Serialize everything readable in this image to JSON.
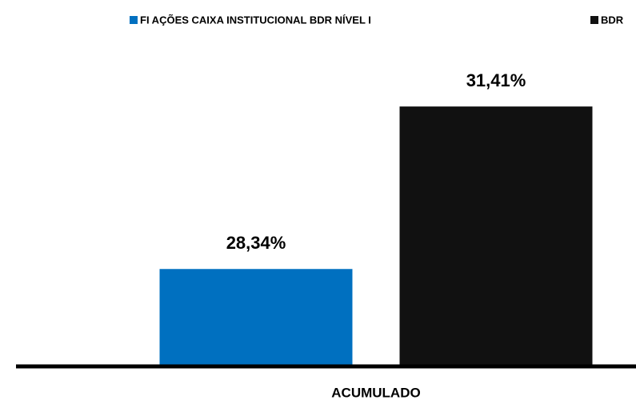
{
  "chart_data": {
    "type": "bar",
    "categories": [
      "ACUMULADO"
    ],
    "series": [
      {
        "name": "FI AÇÕES CAIXA INSTITUCIONAL BDR NÍVEL I",
        "color": "#0070c0",
        "values": [
          28.34
        ],
        "value_labels": [
          "28,34%"
        ]
      },
      {
        "name": "BDR",
        "color": "#111111",
        "values": [
          31.41
        ],
        "value_labels": [
          "31,41%"
        ]
      }
    ],
    "ylim": [
      26.5,
      32.5
    ],
    "legend": "top"
  }
}
